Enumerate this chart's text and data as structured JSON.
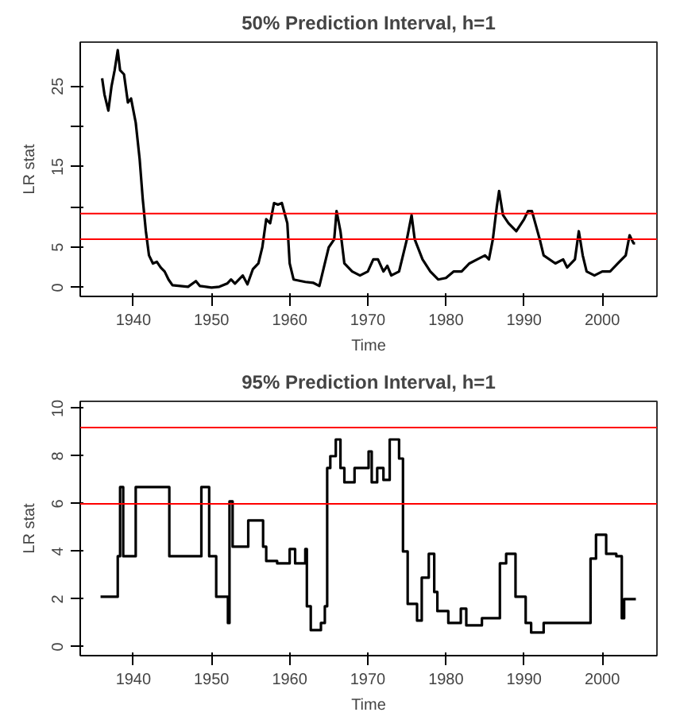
{
  "chart_data": [
    {
      "type": "line",
      "title": "50% Prediction Interval, h=1",
      "xlabel": "Time",
      "ylabel": "LR stat",
      "xlim": [
        1933.2,
        2007
      ],
      "ylim": [
        -1.1,
        30.5
      ],
      "xticks": [
        1940,
        1950,
        1960,
        1970,
        1980,
        1990,
        2000
      ],
      "yticks": [
        0,
        5,
        {
          "value": 10,
          "label": null
        },
        15,
        {
          "value": 20,
          "label": null
        },
        25
      ],
      "grid": false,
      "series": [
        {
          "color": "#000000",
          "x": [
            1936,
            1936.3,
            1936.8,
            1937.2,
            1937.6,
            1938,
            1938.3,
            1938.8,
            1939.3,
            1939.7,
            1940.3,
            1940.8,
            1941.2,
            1941.6,
            1942,
            1942.5,
            1943,
            1943.5,
            1944,
            1944.5,
            1945,
            1946,
            1947,
            1948,
            1948.5,
            1950,
            1951,
            1952,
            1952.5,
            1953,
            1954,
            1954.6,
            1955.3,
            1956,
            1956.5,
            1957,
            1957.5,
            1958,
            1958.5,
            1959,
            1959.7,
            1960,
            1960.5,
            1962,
            1963,
            1963.8,
            1964.5,
            1965,
            1965.7,
            1966,
            1966.5,
            1967,
            1968,
            1969,
            1970,
            1970.7,
            1971.3,
            1972,
            1972.5,
            1973,
            1974,
            1975,
            1975.6,
            1976,
            1977,
            1978,
            1979,
            1980,
            1981,
            1982,
            1983,
            1984,
            1985,
            1985.5,
            1986,
            1986.5,
            1986.8,
            1987.3,
            1988,
            1989,
            1990,
            1990.5,
            1991,
            1992,
            1992.5,
            1994,
            1995,
            1995.5,
            1996.5,
            1997,
            1997.5,
            1998,
            1999,
            2000,
            2001,
            2002,
            2003,
            2003.5,
            2004,
            2004.2
          ],
          "values": [
            26,
            24,
            22,
            25,
            27,
            29.5,
            27,
            26.5,
            23,
            23.5,
            20.5,
            16,
            11,
            7,
            4,
            3,
            3.2,
            2.5,
            2,
            1,
            0.3,
            0.2,
            0.1,
            0.8,
            0.2,
            0,
            0.1,
            0.5,
            1,
            0.5,
            1.5,
            0.4,
            2.3,
            3,
            5,
            8.5,
            8,
            10.5,
            10.3,
            10.5,
            8,
            3,
            1,
            0.7,
            0.6,
            0.2,
            3,
            5,
            6,
            9.5,
            7,
            3,
            2,
            1.5,
            2,
            3.5,
            3.5,
            2,
            2.7,
            1.5,
            2,
            6,
            9,
            6,
            3.5,
            2,
            1,
            1.2,
            2,
            2,
            3,
            3.5,
            4,
            3.5,
            6,
            10,
            12,
            9,
            8,
            7,
            8.5,
            9.5,
            9.5,
            6,
            4,
            3,
            3.5,
            2.5,
            3.5,
            7,
            4,
            2,
            1.5,
            2,
            2,
            3,
            4,
            6.5,
            5.5,
            5.5
          ]
        }
      ],
      "ref_lines": [
        {
          "axis": "y",
          "value": 9.2,
          "color": "#ff0000"
        },
        {
          "axis": "y",
          "value": 6.0,
          "color": "#ff0000"
        }
      ]
    },
    {
      "type": "step",
      "title": "95% Prediction Interval, h=1",
      "xlabel": "Time",
      "ylabel": "LR stat",
      "xlim": [
        1933.2,
        2007
      ],
      "ylim": [
        -0.37,
        10.3
      ],
      "xticks": [
        1940,
        1950,
        1960,
        1970,
        1980,
        1990,
        2000
      ],
      "yticks": [
        0,
        2,
        4,
        6,
        8,
        10
      ],
      "grid": false,
      "series": [
        {
          "color": "#000000",
          "x": [
            1935.8,
            1938,
            1938.3,
            1938.7,
            1940.3,
            1944.6,
            1948.7,
            1949.7,
            1950.6,
            1952.1,
            1952.3,
            1952.7,
            1954.7,
            1956.6,
            1957,
            1958.4,
            1960,
            1960.7,
            1962,
            1962.2,
            1962.7,
            1964,
            1964.5,
            1964.8,
            1965.2,
            1965.9,
            1966.5,
            1967,
            1968.3,
            1969.3,
            1970.1,
            1970.5,
            1971.2,
            1972,
            1972.8,
            1974,
            1974.5,
            1975.1,
            1976.3,
            1976.9,
            1977.8,
            1978.5,
            1978.9,
            1980.3,
            1981.9,
            1982.6,
            1984.6,
            1986.9,
            1987.7,
            1988.9,
            1990.2,
            1990.9,
            1992.5,
            1998.5,
            1999.2,
            2000.5,
            2001.8,
            2002.5,
            2002.8,
            2004.3
          ],
          "values": [
            2.1,
            3.8,
            6.7,
            3.8,
            6.7,
            3.8,
            6.7,
            3.8,
            2.1,
            1.0,
            6.1,
            4.2,
            5.3,
            4.2,
            3.6,
            3.5,
            4.1,
            3.5,
            4.1,
            1.7,
            0.7,
            1.0,
            1.7,
            7.5,
            8.0,
            8.7,
            7.5,
            6.9,
            7.5,
            7.5,
            8.2,
            6.9,
            7.5,
            7.0,
            8.7,
            7.9,
            4.0,
            1.8,
            1.1,
            2.9,
            3.9,
            2.3,
            1.5,
            1.0,
            1.6,
            0.9,
            1.2,
            3.5,
            3.9,
            2.1,
            1.0,
            0.6,
            1.0,
            3.7,
            4.7,
            3.9,
            3.8,
            1.2,
            2.0,
            2.0
          ]
        }
      ],
      "ref_lines": [
        {
          "axis": "y",
          "value": 9.2,
          "color": "#ff0000"
        },
        {
          "axis": "y",
          "value": 6.0,
          "color": "#ff0000"
        }
      ]
    }
  ]
}
